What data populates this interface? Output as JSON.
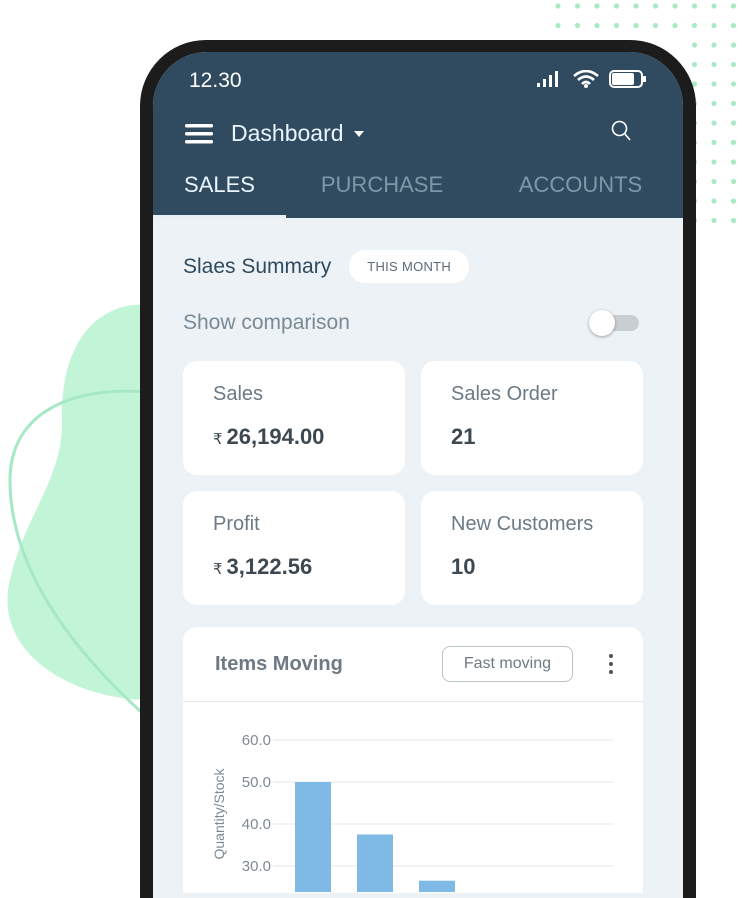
{
  "status_bar": {
    "time": "12.30"
  },
  "header": {
    "title": "Dashboard"
  },
  "tabs": [
    {
      "label": "SALES",
      "active": true
    },
    {
      "label": "PURCHASE",
      "active": false
    },
    {
      "label": "ACCOUNTS",
      "active": false
    }
  ],
  "summary": {
    "title": "Slaes Summary",
    "period": "THIS MONTH",
    "comparison_label": "Show comparison",
    "comparison_on": false
  },
  "cards": [
    {
      "label": "Sales",
      "currency": "₹",
      "value": "26,194.00"
    },
    {
      "label": "Sales Order",
      "currency": "",
      "value": "21"
    },
    {
      "label": "Profit",
      "currency": "₹",
      "value": "3,122.56"
    },
    {
      "label": "New Customers",
      "currency": "",
      "value": "10"
    }
  ],
  "items_moving": {
    "title": "Items Moving",
    "filter": "Fast moving"
  },
  "chart_data": {
    "type": "bar",
    "ylabel": "Quantity/Stock",
    "yticks": [
      "30.0",
      "40.0",
      "50.0",
      "60.0"
    ],
    "values": [
      50,
      37.5,
      26.5
    ],
    "ylim_top": 60,
    "grid": true,
    "bar_color": "#7fb9e5"
  },
  "colors": {
    "header": "#304b5f",
    "background": "#edf2f7",
    "accent_green": "#bff3d6"
  }
}
